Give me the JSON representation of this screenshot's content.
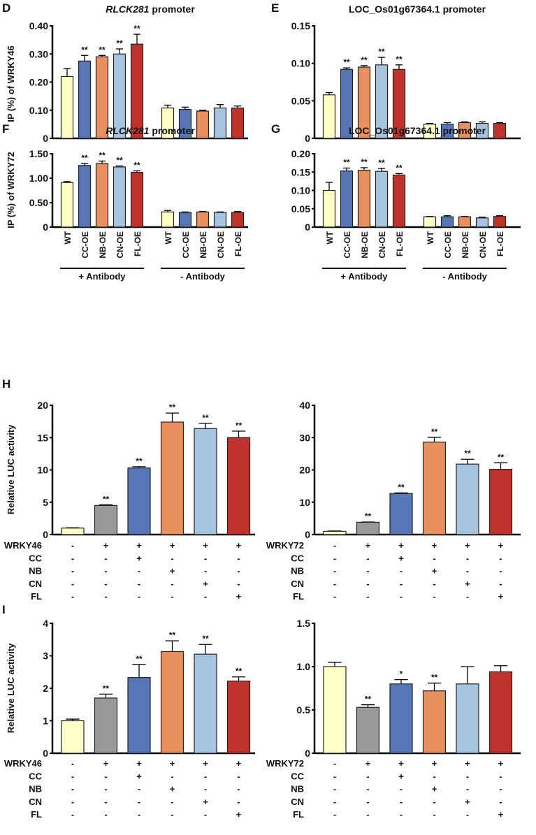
{
  "colors": {
    "WT": "#ffffc6",
    "CC": "#5676b6",
    "NB": "#e8905e",
    "CN": "#a6c4e0",
    "FL": "#c0332d",
    "vector": "#999999",
    "axis": "#000000"
  },
  "chart_data": [
    {
      "id": "D",
      "panel_letter": "D",
      "type": "bar",
      "title_gene": "RLCK281",
      "title_suffix": " promoter",
      "ylabel": "IP (%) of WRKY46",
      "ylim": [
        0,
        0.4
      ],
      "yticks": [
        "0",
        "0.10",
        "0.20",
        "0.30",
        "0.40"
      ],
      "ytick_values": [
        0,
        0.1,
        0.2,
        0.3,
        0.4
      ],
      "categories": [
        "WT",
        "CC-OE",
        "NB-OE",
        "CN-OE",
        "FL-OE"
      ],
      "color_keys": [
        "WT",
        "CC",
        "NB",
        "CN",
        "FL"
      ],
      "groups": [
        {
          "name": "+ Antibody",
          "values": [
            0.22,
            0.275,
            0.29,
            0.3,
            0.335
          ],
          "errors": [
            0.028,
            0.02,
            0.005,
            0.018,
            0.035
          ],
          "sig": [
            "",
            "**",
            "**",
            "**",
            "**"
          ]
        },
        {
          "name": "- Antibody",
          "values": [
            0.108,
            0.103,
            0.097,
            0.108,
            0.108
          ],
          "errors": [
            0.01,
            0.008,
            0.003,
            0.012,
            0.007
          ],
          "sig": [
            "",
            "",
            "",
            "",
            ""
          ]
        }
      ],
      "show_xlabels": false
    },
    {
      "id": "E",
      "panel_letter": "E",
      "type": "bar",
      "title_gene": "",
      "title_suffix": "LOC_Os01g67364.1 promoter",
      "ylabel": "",
      "ylim": [
        0,
        0.15
      ],
      "yticks": [
        "0",
        "0.05",
        "0.10",
        "0.15"
      ],
      "ytick_values": [
        0,
        0.05,
        0.1,
        0.15
      ],
      "categories": [
        "WT",
        "CC-OE",
        "NB-OE",
        "CN-OE",
        "FL-OE"
      ],
      "color_keys": [
        "WT",
        "CC",
        "NB",
        "CN",
        "FL"
      ],
      "groups": [
        {
          "name": "+ Antibody",
          "values": [
            0.058,
            0.092,
            0.095,
            0.098,
            0.092
          ],
          "errors": [
            0.003,
            0.002,
            0.002,
            0.01,
            0.006
          ],
          "sig": [
            "",
            "**",
            "**",
            "**",
            "**"
          ]
        },
        {
          "name": "- Antibody",
          "values": [
            0.019,
            0.019,
            0.021,
            0.02,
            0.02
          ],
          "errors": [
            0.001,
            0.002,
            0.001,
            0.002,
            0.001
          ],
          "sig": [
            "",
            "",
            "",
            "",
            ""
          ]
        }
      ],
      "show_xlabels": false
    },
    {
      "id": "F",
      "panel_letter": "F",
      "type": "bar",
      "title_gene": "RLCK281",
      "title_suffix": " promoter",
      "ylabel": "IP (%) of WRKY72",
      "ylim": [
        0,
        1.5
      ],
      "yticks": [
        "0",
        "0.50",
        "1.00",
        "1.50"
      ],
      "ytick_values": [
        0,
        0.5,
        1.0,
        1.5
      ],
      "categories": [
        "WT",
        "CC-OE",
        "NB-OE",
        "CN-OE",
        "FL-OE"
      ],
      "color_keys": [
        "WT",
        "CC",
        "NB",
        "CN",
        "FL"
      ],
      "groups": [
        {
          "name": "+ Antibody",
          "values": [
            0.91,
            1.26,
            1.3,
            1.23,
            1.12
          ],
          "errors": [
            0.02,
            0.04,
            0.05,
            0.02,
            0.03
          ],
          "sig": [
            "",
            "**",
            "**",
            "**",
            "**"
          ]
        },
        {
          "name": "- Antibody",
          "values": [
            0.31,
            0.3,
            0.31,
            0.3,
            0.3
          ],
          "errors": [
            0.03,
            0.01,
            0.01,
            0.01,
            0.02
          ],
          "sig": [
            "",
            "",
            "",
            "",
            ""
          ]
        }
      ],
      "show_xlabels": true
    },
    {
      "id": "G",
      "panel_letter": "G",
      "type": "bar",
      "title_gene": "",
      "title_suffix": "LOC_Os01g67364.1 promoter",
      "ylabel": "",
      "ylim": [
        0,
        0.2
      ],
      "yticks": [
        "0",
        "0.05",
        "0.10",
        "0.15",
        "0.20"
      ],
      "ytick_values": [
        0,
        0.05,
        0.1,
        0.15,
        0.2
      ],
      "categories": [
        "WT",
        "CC-OE",
        "NB-OE",
        "CN-OE",
        "FL-OE"
      ],
      "color_keys": [
        "WT",
        "CC",
        "NB",
        "CN",
        "FL"
      ],
      "groups": [
        {
          "name": "+ Antibody",
          "values": [
            0.1,
            0.153,
            0.155,
            0.152,
            0.142
          ],
          "errors": [
            0.022,
            0.008,
            0.007,
            0.008,
            0.004
          ],
          "sig": [
            "",
            "**",
            "**",
            "**",
            "**"
          ]
        },
        {
          "name": "- Antibody",
          "values": [
            0.028,
            0.028,
            0.028,
            0.025,
            0.029
          ],
          "errors": [
            0.001,
            0.003,
            0.001,
            0.002,
            0.002
          ],
          "sig": [
            "",
            "",
            "",
            "",
            ""
          ]
        }
      ],
      "show_xlabels": true
    },
    {
      "id": "H1",
      "panel_letter": "H",
      "type": "bar",
      "ylabel": "Relative LUC activity",
      "ylim": [
        0,
        20
      ],
      "yticks": [
        "0",
        "5",
        "10",
        "15",
        "20"
      ],
      "ytick_values": [
        0,
        5,
        10,
        15,
        20
      ],
      "color_keys": [
        "WT",
        "vector",
        "CC",
        "NB",
        "CN",
        "FL"
      ],
      "values": [
        1.0,
        4.5,
        10.3,
        17.4,
        16.4,
        15.0
      ],
      "errors": [
        0.05,
        0.1,
        0.2,
        1.4,
        0.8,
        1.0
      ],
      "sig": [
        "",
        "**",
        "**",
        "**",
        "**",
        "**"
      ],
      "conditions": [
        {
          "label": "WRKY46",
          "signs": [
            "-",
            "+",
            "+",
            "+",
            "+",
            "+"
          ]
        },
        {
          "label": "CC",
          "signs": [
            "-",
            "-",
            "+",
            "-",
            "-",
            "-"
          ]
        },
        {
          "label": "NB",
          "signs": [
            "-",
            "-",
            "-",
            "+",
            "-",
            "-"
          ]
        },
        {
          "label": "CN",
          "signs": [
            "-",
            "-",
            "-",
            "-",
            "+",
            "-"
          ]
        },
        {
          "label": "FL",
          "signs": [
            "-",
            "-",
            "-",
            "-",
            "-",
            "+"
          ]
        }
      ]
    },
    {
      "id": "H2",
      "panel_letter": "",
      "type": "bar",
      "ylabel": "",
      "ylim": [
        0,
        40
      ],
      "yticks": [
        "0",
        "10",
        "20",
        "30",
        "40"
      ],
      "ytick_values": [
        0,
        10,
        20,
        30,
        40
      ],
      "color_keys": [
        "WT",
        "vector",
        "CC",
        "NB",
        "CN",
        "FL"
      ],
      "values": [
        1.0,
        3.8,
        12.7,
        28.6,
        21.8,
        20.2
      ],
      "errors": [
        0.1,
        0.1,
        0.2,
        1.5,
        1.5,
        2.0
      ],
      "sig": [
        "",
        "**",
        "**",
        "**",
        "**",
        "**"
      ],
      "conditions": [
        {
          "label": "WRKY72",
          "signs": [
            "-",
            "+",
            "+",
            "+",
            "+",
            "+"
          ]
        },
        {
          "label": "CC",
          "signs": [
            "-",
            "-",
            "+",
            "-",
            "-",
            "-"
          ]
        },
        {
          "label": "NB",
          "signs": [
            "-",
            "-",
            "-",
            "+",
            "-",
            "-"
          ]
        },
        {
          "label": "CN",
          "signs": [
            "-",
            "-",
            "-",
            "-",
            "+",
            "-"
          ]
        },
        {
          "label": "FL",
          "signs": [
            "-",
            "-",
            "-",
            "-",
            "-",
            "+"
          ]
        }
      ]
    },
    {
      "id": "I1",
      "panel_letter": "I",
      "type": "bar",
      "ylabel": "Relative LUC activity",
      "ylim": [
        0,
        4
      ],
      "yticks": [
        "0",
        "1",
        "2",
        "3",
        "4"
      ],
      "ytick_values": [
        0,
        1,
        2,
        3,
        4
      ],
      "color_keys": [
        "WT",
        "vector",
        "CC",
        "NB",
        "CN",
        "FL"
      ],
      "values": [
        1.0,
        1.7,
        2.33,
        3.13,
        3.05,
        2.22
      ],
      "errors": [
        0.05,
        0.12,
        0.4,
        0.33,
        0.3,
        0.13
      ],
      "sig": [
        "",
        "**",
        "**",
        "**",
        "**",
        "**"
      ],
      "conditions": [
        {
          "label": "WRKY46",
          "signs": [
            "-",
            "+",
            "+",
            "+",
            "+",
            "+"
          ]
        },
        {
          "label": "CC",
          "signs": [
            "-",
            "-",
            "+",
            "-",
            "-",
            "-"
          ]
        },
        {
          "label": "NB",
          "signs": [
            "-",
            "-",
            "-",
            "+",
            "-",
            "-"
          ]
        },
        {
          "label": "CN",
          "signs": [
            "-",
            "-",
            "-",
            "-",
            "+",
            "-"
          ]
        },
        {
          "label": "FL",
          "signs": [
            "-",
            "-",
            "-",
            "-",
            "-",
            "+"
          ]
        }
      ]
    },
    {
      "id": "I2",
      "panel_letter": "",
      "type": "bar",
      "ylabel": "",
      "ylim": [
        0,
        1.5
      ],
      "yticks": [
        "0",
        "0.5",
        "1.0",
        "1.5"
      ],
      "ytick_values": [
        0,
        0.5,
        1.0,
        1.5
      ],
      "color_keys": [
        "WT",
        "vector",
        "CC",
        "NB",
        "CN",
        "FL"
      ],
      "values": [
        1.0,
        0.53,
        0.8,
        0.72,
        0.8,
        0.94
      ],
      "errors": [
        0.05,
        0.03,
        0.05,
        0.09,
        0.2,
        0.07
      ],
      "sig": [
        "",
        "**",
        "*",
        "**",
        "",
        ""
      ],
      "conditions": [
        {
          "label": "WRKY72",
          "signs": [
            "-",
            "+",
            "+",
            "+",
            "+",
            "+"
          ]
        },
        {
          "label": "CC",
          "signs": [
            "-",
            "-",
            "+",
            "-",
            "-",
            "-"
          ]
        },
        {
          "label": "NB",
          "signs": [
            "-",
            "-",
            "-",
            "+",
            "-",
            "-"
          ]
        },
        {
          "label": "CN",
          "signs": [
            "-",
            "-",
            "-",
            "-",
            "+",
            "-"
          ]
        },
        {
          "label": "FL",
          "signs": [
            "-",
            "-",
            "-",
            "-",
            "-",
            "+"
          ]
        }
      ]
    }
  ]
}
